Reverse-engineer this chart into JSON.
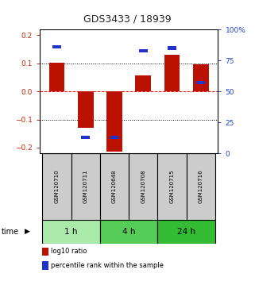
{
  "title": "GDS3433 / 18939",
  "samples": [
    "GSM120710",
    "GSM120711",
    "GSM120648",
    "GSM120708",
    "GSM120715",
    "GSM120716"
  ],
  "log10_ratio": [
    0.101,
    -0.13,
    -0.215,
    0.056,
    0.13,
    0.095
  ],
  "percentile_rank": [
    86,
    13,
    13,
    83,
    85,
    57
  ],
  "time_groups": [
    {
      "label": "1 h",
      "start": 0,
      "end": 1,
      "color": "#aaeaaa"
    },
    {
      "label": "4 h",
      "start": 2,
      "end": 3,
      "color": "#55cc55"
    },
    {
      "label": "24 h",
      "start": 4,
      "end": 5,
      "color": "#33bb33"
    }
  ],
  "ylim_left": [
    -0.22,
    0.22
  ],
  "ylim_right": [
    0,
    100
  ],
  "yticks_left": [
    -0.2,
    -0.1,
    0,
    0.1,
    0.2
  ],
  "yticks_right": [
    0,
    25,
    50,
    75,
    100
  ],
  "bar_color": "#bb1100",
  "square_color": "#2233cc",
  "sample_box_color": "#cccccc",
  "title_color": "#222222",
  "left_axis_color": "#cc2200",
  "right_axis_color": "#2244cc",
  "bar_width": 0.55
}
